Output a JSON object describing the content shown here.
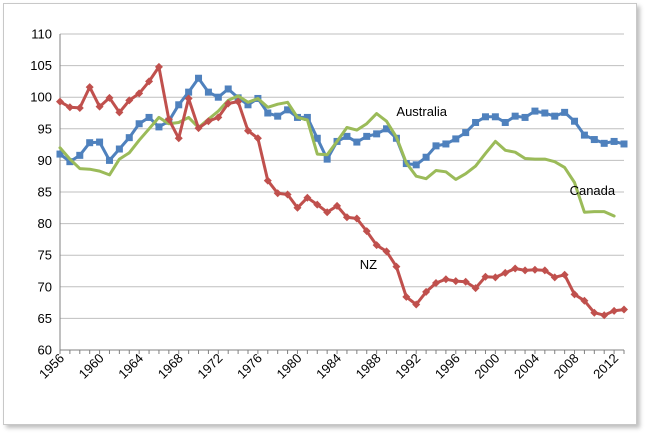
{
  "chart_data": {
    "type": "line",
    "title": "",
    "xlabel": "",
    "ylabel": "",
    "xlim": [
      1956,
      2013
    ],
    "ylim": [
      60,
      110
    ],
    "ytick_step": 5,
    "grid": "horizontal",
    "x_tick_labels": [
      "1956",
      "1960",
      "1964",
      "1968",
      "1972",
      "1976",
      "1980",
      "1984",
      "1988",
      "1992",
      "1996",
      "2000",
      "2004",
      "2008",
      "2012"
    ],
    "y_tick_labels": [
      "60",
      "65",
      "70",
      "75",
      "80",
      "85",
      "90",
      "95",
      "100",
      "105",
      "110"
    ],
    "series": [
      {
        "name": "Australia",
        "color": "#4f81bd",
        "marker": "square",
        "label_at": [
          1990,
          97
        ],
        "x": [
          1956,
          1957,
          1958,
          1959,
          1960,
          1961,
          1962,
          1963,
          1964,
          1965,
          1966,
          1967,
          1968,
          1969,
          1970,
          1971,
          1972,
          1973,
          1974,
          1975,
          1976,
          1977,
          1978,
          1979,
          1980,
          1981,
          1982,
          1983,
          1984,
          1985,
          1986,
          1987,
          1988,
          1989,
          1990,
          1991,
          1992,
          1993,
          1994,
          1995,
          1996,
          1997,
          1998,
          1999,
          2000,
          2001,
          2002,
          2003,
          2004,
          2005,
          2006,
          2007,
          2008,
          2009,
          2010,
          2011,
          2012,
          2013
        ],
        "y": [
          91,
          89.8,
          90.8,
          92.8,
          92.9,
          90,
          91.8,
          93.6,
          95.8,
          96.8,
          95.3,
          96.2,
          98.8,
          100.8,
          103,
          100.8,
          100,
          101.3,
          99.9,
          98.8,
          99.8,
          97.5,
          97,
          98,
          96.8,
          96.8,
          93.5,
          90.2,
          93,
          93.8,
          92.9,
          93.8,
          94.2,
          95,
          93.5,
          89.5,
          89.3,
          90.5,
          92.3,
          92.6,
          93.4,
          94.4,
          96,
          96.9,
          96.9,
          96,
          97,
          96.8,
          97.8,
          97.5,
          97,
          97.6,
          96.2,
          94,
          93.3,
          92.7,
          93,
          92.6
        ]
      },
      {
        "name": "Canada",
        "color": "#9bbb59",
        "marker": "none",
        "label_at": [
          2007.5,
          84.5
        ],
        "x": [
          1956,
          1957,
          1958,
          1959,
          1960,
          1961,
          1962,
          1963,
          1964,
          1965,
          1966,
          1967,
          1968,
          1969,
          1970,
          1971,
          1972,
          1973,
          1974,
          1975,
          1976,
          1977,
          1978,
          1979,
          1980,
          1981,
          1982,
          1983,
          1984,
          1985,
          1986,
          1987,
          1988,
          1989,
          1990,
          1991,
          1992,
          1993,
          1994,
          1995,
          1996,
          1997,
          1998,
          1999,
          2000,
          2001,
          2002,
          2003,
          2004,
          2005,
          2006,
          2007,
          2008,
          2009,
          2010,
          2011,
          2012
        ],
        "y": [
          92,
          90.2,
          88.7,
          88.6,
          88.3,
          87.7,
          90.2,
          91.2,
          93.2,
          95,
          96.8,
          95.8,
          96,
          96.8,
          95.2,
          96.5,
          97.8,
          99.5,
          100.2,
          99.2,
          99.8,
          98.4,
          98.9,
          99.2,
          96.8,
          96.4,
          91,
          90.9,
          93,
          95.2,
          94.8,
          95.8,
          97.4,
          96.2,
          93.7,
          89.6,
          87.5,
          87.1,
          88.4,
          88.2,
          87,
          87.9,
          89.1,
          91.1,
          93,
          91.6,
          91.3,
          90.3,
          90.2,
          90.2,
          89.8,
          88.9,
          86.5,
          81.8,
          81.9,
          81.9,
          81.2
        ]
      },
      {
        "name": "NZ",
        "color": "#c0504d",
        "marker": "diamond",
        "label_at": [
          1986.3,
          72.8
        ],
        "x": [
          1956,
          1957,
          1958,
          1959,
          1960,
          1961,
          1962,
          1963,
          1964,
          1965,
          1966,
          1967,
          1968,
          1969,
          1970,
          1971,
          1972,
          1973,
          1974,
          1975,
          1976,
          1977,
          1978,
          1979,
          1980,
          1981,
          1982,
          1983,
          1984,
          1985,
          1986,
          1987,
          1988,
          1989,
          1990,
          1991,
          1992,
          1993,
          1994,
          1995,
          1996,
          1997,
          1998,
          1999,
          2000,
          2001,
          2002,
          2003,
          2004,
          2005,
          2006,
          2007,
          2008,
          2009,
          2010,
          2011,
          2012,
          2013
        ],
        "y": [
          99.3,
          98.4,
          98.3,
          101.6,
          98.5,
          99.9,
          97.6,
          99.5,
          100.6,
          102.5,
          104.8,
          96.5,
          93.5,
          99.8,
          95.1,
          96.2,
          96.8,
          99,
          99.3,
          94.7,
          93.5,
          86.8,
          84.8,
          84.6,
          82.5,
          84.1,
          83,
          81.8,
          82.8,
          81,
          80.8,
          78.8,
          76.6,
          75.6,
          73.2,
          68.4,
          67.2,
          69.2,
          70.6,
          71.2,
          70.9,
          70.8,
          69.8,
          71.6,
          71.5,
          72.2,
          72.9,
          72.6,
          72.7,
          72.6,
          71.5,
          71.9,
          68.8,
          67.8,
          65.9,
          65.5,
          66.2,
          66.4
        ]
      }
    ]
  }
}
